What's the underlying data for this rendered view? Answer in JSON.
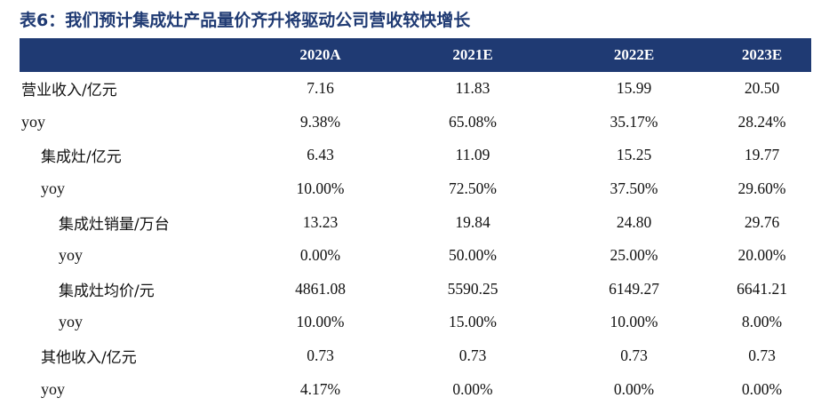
{
  "title": "表6：我们预计集成灶产品量价齐升将驱动公司营收较快增长",
  "chart_data": {
    "type": "table",
    "columns": [
      "2020A",
      "2021E",
      "2022E",
      "2023E"
    ],
    "rows": [
      {
        "label": "营业收入/亿元",
        "level": 0,
        "values": [
          "7.16",
          "11.83",
          "15.99",
          "20.50"
        ]
      },
      {
        "label": "yoy",
        "level": 0,
        "values": [
          "9.38%",
          "65.08%",
          "35.17%",
          "28.24%"
        ]
      },
      {
        "label": "集成灶/亿元",
        "level": 1,
        "values": [
          "6.43",
          "11.09",
          "15.25",
          "19.77"
        ]
      },
      {
        "label": "yoy",
        "level": 1,
        "values": [
          "10.00%",
          "72.50%",
          "37.50%",
          "29.60%"
        ]
      },
      {
        "label": "集成灶销量/万台",
        "level": 2,
        "values": [
          "13.23",
          "19.84",
          "24.80",
          "29.76"
        ]
      },
      {
        "label": "yoy",
        "level": 2,
        "values": [
          "0.00%",
          "50.00%",
          "25.00%",
          "20.00%"
        ]
      },
      {
        "label": "集成灶均价/元",
        "level": 2,
        "values": [
          "4861.08",
          "5590.25",
          "6149.27",
          "6641.21"
        ]
      },
      {
        "label": "yoy",
        "level": 2,
        "values": [
          "10.00%",
          "15.00%",
          "10.00%",
          "8.00%"
        ]
      },
      {
        "label": "其他收入/亿元",
        "level": 1,
        "values": [
          "0.73",
          "0.73",
          "0.73",
          "0.73"
        ]
      },
      {
        "label": "yoy",
        "level": 1,
        "values": [
          "4.17%",
          "0.00%",
          "0.00%",
          "0.00%"
        ]
      }
    ]
  },
  "colors": {
    "header_bg": "#1f3a73",
    "header_text": "#ffffff",
    "title": "#1f3a73"
  }
}
